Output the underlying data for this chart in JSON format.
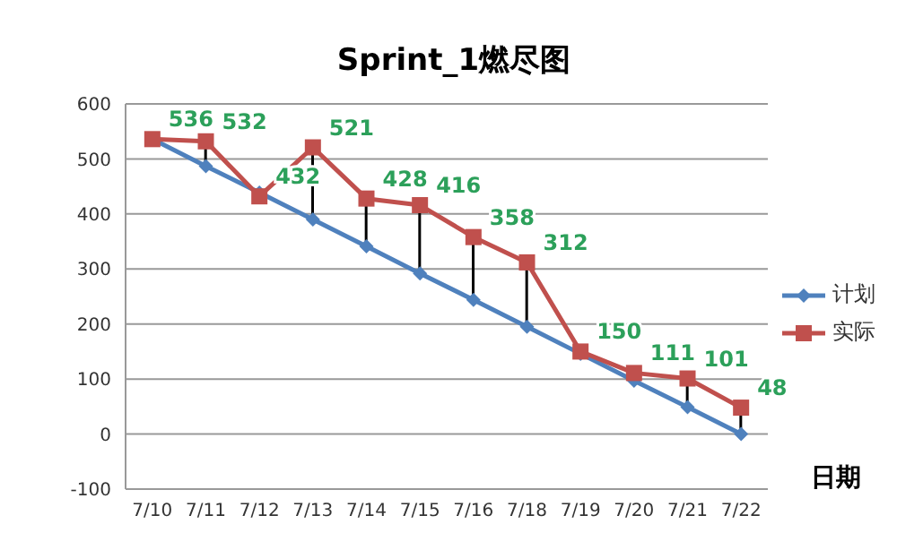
{
  "chart_data": {
    "type": "line",
    "title": "Sprint_1燃尽图",
    "xlabel": "日期",
    "categories": [
      "7/10",
      "7/11",
      "7/12",
      "7/13",
      "7/14",
      "7/15",
      "7/16",
      "7/18",
      "7/19",
      "7/20",
      "7/21",
      "7/22"
    ],
    "series": [
      {
        "name": "计划",
        "color": "#4f81bd",
        "marker": "diamond",
        "values": [
          536,
          487,
          439,
          390,
          341,
          292,
          244,
          195,
          146,
          97,
          49,
          0
        ]
      },
      {
        "name": "实际",
        "color": "#c0504d",
        "marker": "square",
        "values": [
          536,
          532,
          432,
          521,
          428,
          416,
          358,
          312,
          150,
          111,
          101,
          48
        ],
        "value_labels": [
          "536",
          "532",
          "432",
          "521",
          "428",
          "416",
          "358",
          "312",
          "150",
          "111",
          "101",
          "48"
        ]
      }
    ],
    "ylim": [
      -100,
      600
    ],
    "yticks": [
      -100,
      0,
      100,
      200,
      300,
      400,
      500,
      600
    ],
    "grid": "y",
    "legend": "right",
    "line_style": "solid"
  }
}
